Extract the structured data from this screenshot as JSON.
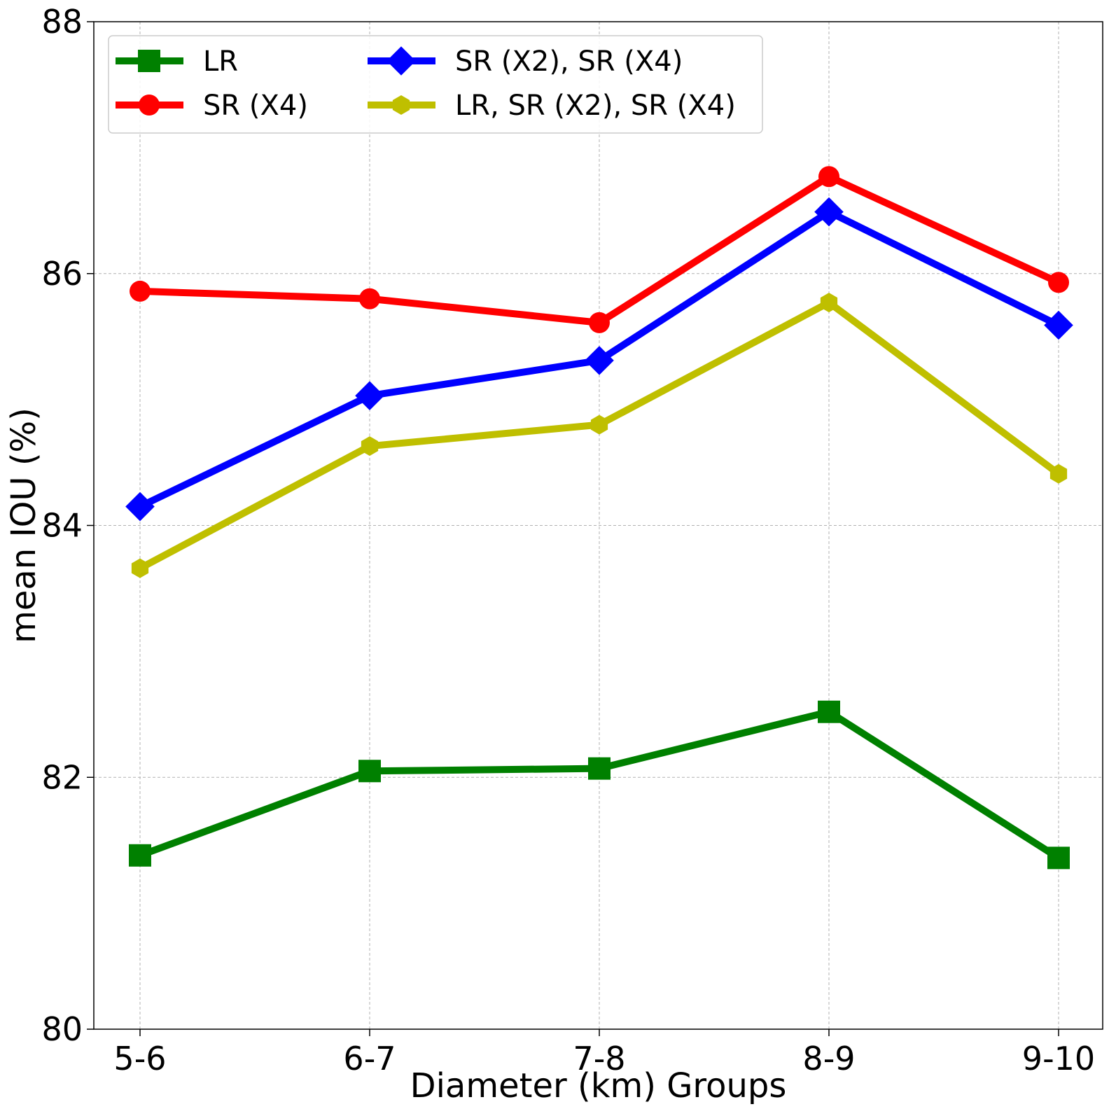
{
  "chart_data": {
    "type": "line",
    "title": "",
    "xlabel": "Diameter (km) Groups",
    "ylabel": "mean IOU (%)",
    "categories": [
      "5-6",
      "6-7",
      "7-8",
      "8-9",
      "9-10"
    ],
    "ylim": [
      80,
      88
    ],
    "yticks": [
      "80",
      "82",
      "84",
      "86",
      "88"
    ],
    "grid": true,
    "legend_position": "top-left",
    "series": [
      {
        "name": "LR",
        "color": "#008000",
        "marker": "square",
        "values": [
          81.38,
          82.05,
          82.07,
          82.52,
          81.36
        ]
      },
      {
        "name": "SR (X4)",
        "color": "#ff0000",
        "marker": "circle",
        "values": [
          85.86,
          85.8,
          85.61,
          86.77,
          85.93
        ]
      },
      {
        "name": "SR (X2), SR (X4)",
        "color": "#0000ff",
        "marker": "diamond",
        "values": [
          84.15,
          85.03,
          85.31,
          86.49,
          85.59
        ]
      },
      {
        "name": "LR, SR (X2), SR (X4)",
        "color": "#bfbf00",
        "marker": "hexagon",
        "values": [
          83.66,
          84.63,
          84.8,
          85.77,
          84.41
        ]
      }
    ]
  }
}
